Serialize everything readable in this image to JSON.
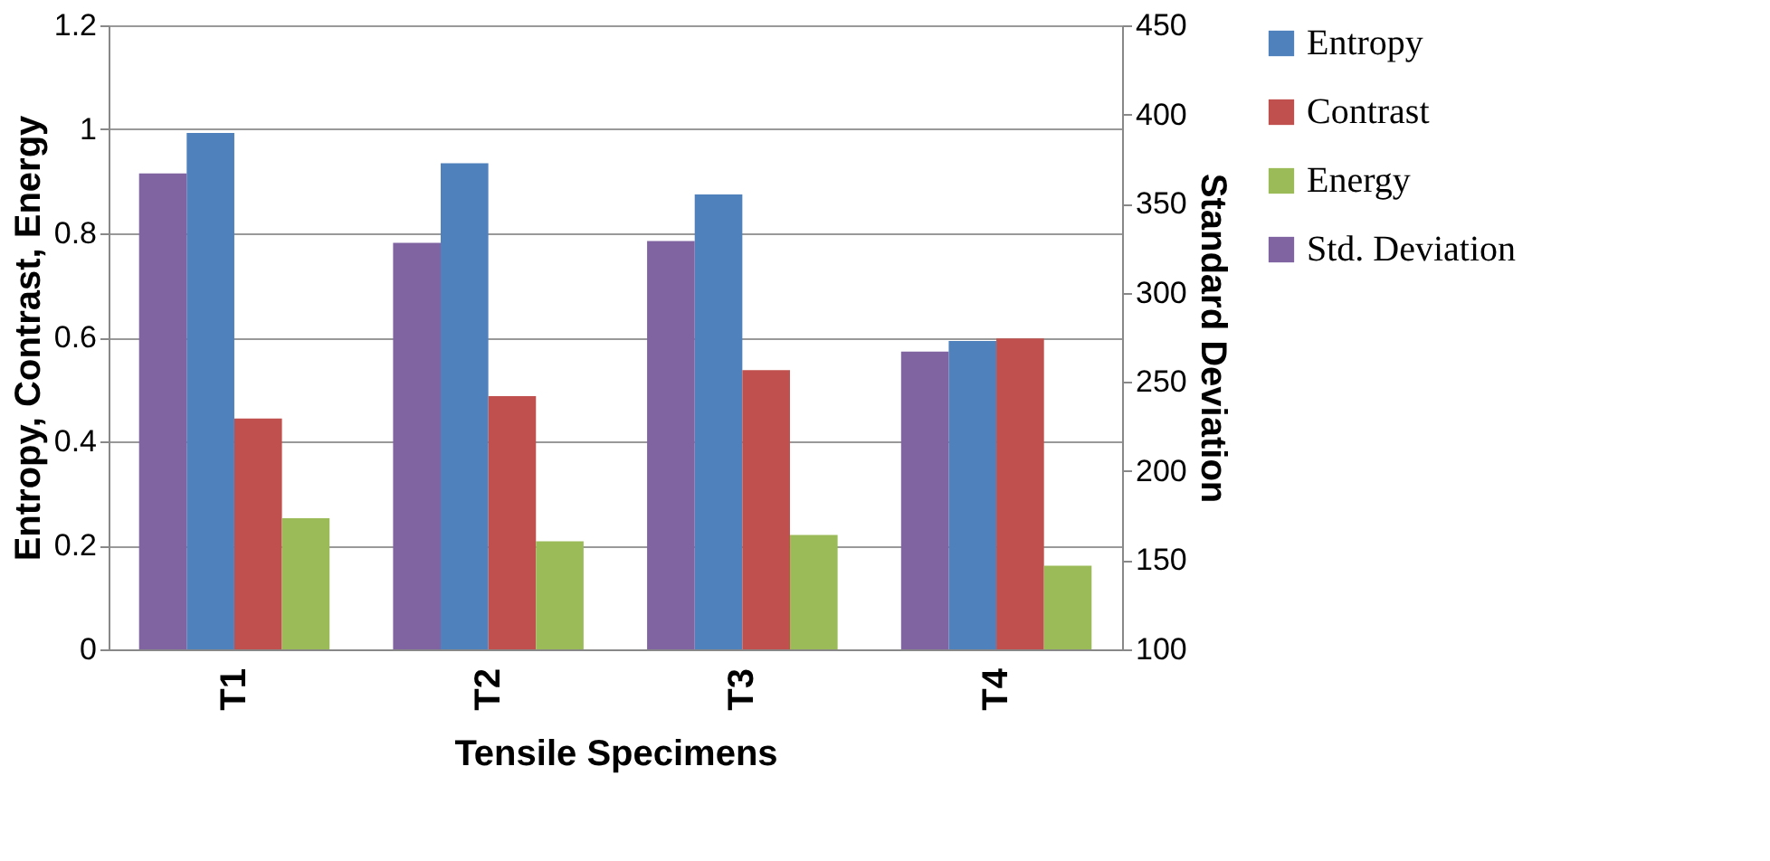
{
  "chart_data": {
    "type": "bar",
    "categories": [
      "T1",
      "T2",
      "T3",
      "T4"
    ],
    "xlabel": "Tensile Specimens",
    "ylabel": "Entropy, Contrast, Energy",
    "y2label": "Standard Deviation",
    "series": [
      {
        "name": "Entropy",
        "color": "#4f81bd",
        "values": [
          0.993,
          0.935,
          0.875,
          0.593
        ]
      },
      {
        "name": "Contrast",
        "color": "#c0504d",
        "values": [
          0.444,
          0.487,
          0.537,
          0.598
        ]
      },
      {
        "name": "Energy",
        "color": "#9bbb59",
        "values": [
          0.252,
          0.208,
          0.22,
          0.161
        ]
      },
      {
        "name": "Std. Deviation",
        "color": "#8064a2",
        "axis": "y2",
        "values": [
          367,
          328,
          329,
          267
        ]
      }
    ],
    "ylim": [
      0,
      1.2
    ],
    "yticks": [
      0,
      0.2,
      0.4,
      0.6,
      0.8,
      1,
      1.2
    ],
    "y2lim": [
      100,
      450
    ],
    "y2ticks": [
      100,
      150,
      200,
      250,
      300,
      350,
      400,
      450
    ],
    "grid": "y",
    "legend": "right"
  }
}
